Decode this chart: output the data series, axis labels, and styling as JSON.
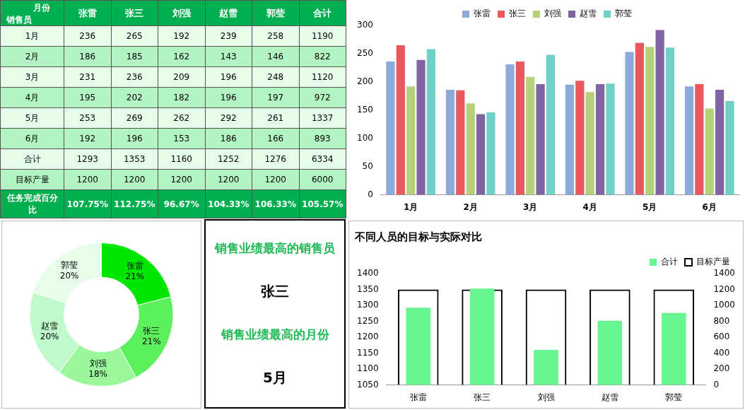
{
  "chart_data": [
    {
      "type": "heatmap",
      "data_labels": true,
      "annotations": [
        "月份",
        "销售员",
        "任务完成百分比",
        "107.75%",
        "112.75%",
        "96.67%",
        "104.33%",
        "106.33%",
        "105.57%"
      ],
      "categories": [
        "张雷",
        "张三",
        "刘强",
        "赵雪",
        "郭莹",
        "合计"
      ],
      "y_categories": [
        "1月",
        "2月",
        "3月",
        "4月",
        "5月",
        "6月",
        "合计",
        "目标产量"
      ],
      "cells": [
        [
          236,
          265,
          192,
          239,
          258,
          1190
        ],
        [
          186,
          185,
          162,
          143,
          146,
          822
        ],
        [
          231,
          236,
          209,
          196,
          248,
          1120
        ],
        [
          195,
          202,
          182,
          196,
          197,
          972
        ],
        [
          253,
          269,
          262,
          292,
          261,
          1337
        ],
        [
          192,
          196,
          153,
          186,
          166,
          893
        ],
        [
          1293,
          1353,
          1160,
          1252,
          1276,
          6334
        ],
        [
          1200,
          1200,
          1200,
          1200,
          1200,
          6000
        ]
      ]
    },
    {
      "type": "bar",
      "categories": [
        "1月",
        "2月",
        "3月",
        "4月",
        "5月",
        "6月"
      ],
      "ylim": [
        0,
        300
      ],
      "yticks": [
        0,
        50,
        100,
        150,
        200,
        250,
        300
      ],
      "legend": "top",
      "series": [
        {
          "name": "张雷",
          "color": "#8eaadb",
          "values": [
            236,
            186,
            231,
            195,
            253,
            192
          ]
        },
        {
          "name": "张三",
          "color": "#e8585c",
          "values": [
            265,
            185,
            236,
            202,
            269,
            196
          ]
        },
        {
          "name": "刘强",
          "color": "#b5d17a",
          "values": [
            192,
            162,
            209,
            182,
            262,
            153
          ]
        },
        {
          "name": "赵雪",
          "color": "#8064a2",
          "values": [
            239,
            143,
            196,
            196,
            292,
            186
          ]
        },
        {
          "name": "郭莹",
          "color": "#6fd0c8",
          "values": [
            258,
            146,
            248,
            197,
            261,
            166
          ]
        }
      ]
    },
    {
      "type": "donut",
      "categories": [
        "张雷",
        "张三",
        "刘强",
        "赵雪",
        "郭莹"
      ],
      "values": [
        21,
        21,
        18,
        20,
        20
      ],
      "value_labels": [
        "21%",
        "21%",
        "18%",
        "20%",
        "20%"
      ],
      "colors": [
        "#00e600",
        "#5cf05c",
        "#9af79a",
        "#bff9cc",
        "#e6fde9"
      ]
    },
    {
      "type": "other",
      "title": "销售业绩最高的销售员",
      "annotations": [
        "张三",
        "销售业绩最高的月份",
        "5月"
      ]
    },
    {
      "type": "bar",
      "title": "不同人员的目标与实际对比",
      "categories": [
        "张雷",
        "张三",
        "刘强",
        "赵雪",
        "郭莹"
      ],
      "ylim": [
        1050,
        1400
      ],
      "yticks": [
        1050,
        1100,
        1150,
        1200,
        1250,
        1300,
        1350,
        1400
      ],
      "y2lim": [
        0,
        1400
      ],
      "y2ticks": [
        0,
        200,
        400,
        600,
        800,
        1000,
        1200,
        1400
      ],
      "legend": "top right",
      "series": [
        {
          "name": "合计",
          "color": "#66f58f",
          "values": [
            1293,
            1353,
            1160,
            1252,
            1276
          ]
        },
        {
          "name": "目标产量",
          "color": "#000000",
          "axis": "y2",
          "values": [
            1200,
            1200,
            1200,
            1200,
            1200
          ]
        }
      ]
    }
  ]
}
